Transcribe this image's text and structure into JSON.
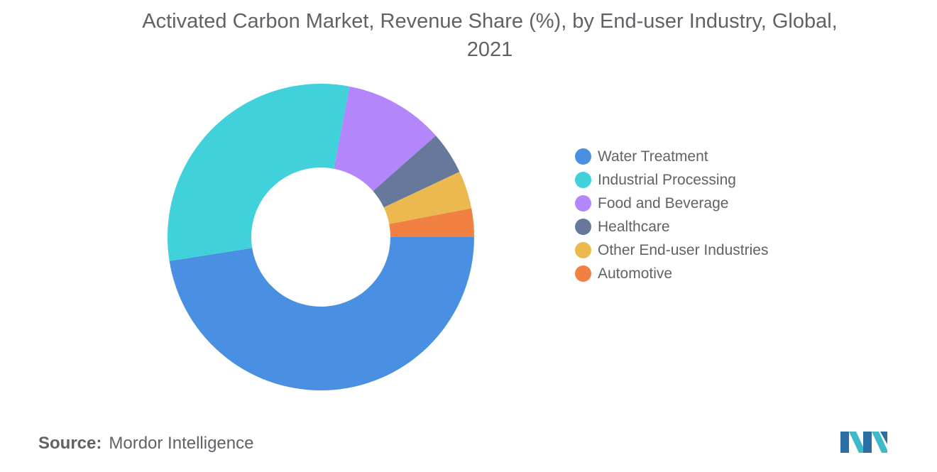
{
  "title_line1": "Activated Carbon Market, Revenue Share (%), by End-user Industry, Global,",
  "title_line2": "2021",
  "source_label": "Source:",
  "source_value": "Mordor Intelligence",
  "logo_icon": "mordor-intelligence-logo-icon",
  "chart_data": {
    "type": "pie",
    "style": "donut",
    "start_angle_deg": 0,
    "direction": "clockwise",
    "categories": [
      "Water Treatment",
      "Industrial Processing",
      "Food and Beverage",
      "Healthcare",
      "Other End-user Industries",
      "Automotive"
    ],
    "values": [
      47.5,
      30.5,
      10.5,
      4.5,
      4.0,
      3.0
    ],
    "colors": [
      "#4a90e2",
      "#40d1da",
      "#b386fc",
      "#66799b",
      "#ebb94f",
      "#f08143"
    ],
    "legend_position": "right"
  }
}
